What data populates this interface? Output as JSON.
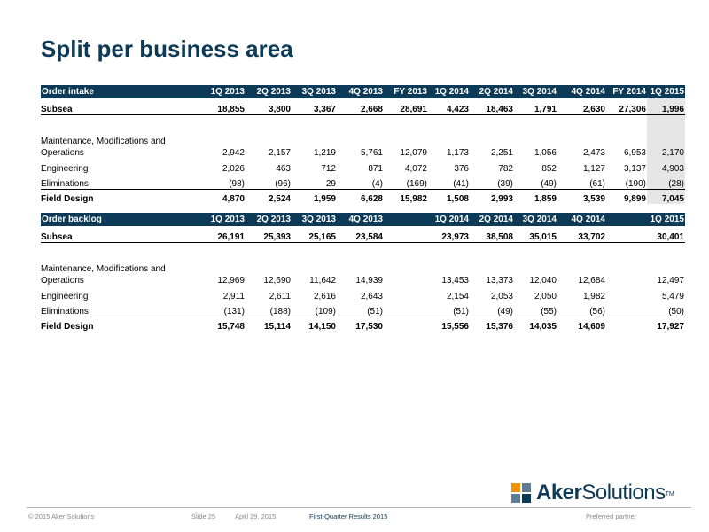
{
  "title": "Split per business area",
  "intake": {
    "header": [
      "Order intake",
      "1Q 2013",
      "2Q 2013",
      "3Q 2013",
      "4Q 2013",
      "FY 2013",
      "1Q 2014",
      "2Q 2014",
      "3Q 2014",
      "4Q 2014",
      "FY 2014",
      "1Q 2015"
    ],
    "rows": [
      {
        "label": "Subsea",
        "values": [
          "18,855",
          "3,800",
          "3,367",
          "2,668",
          "28,691",
          "4,423",
          "18,463",
          "1,791",
          "2,630",
          "27,306",
          "1,996"
        ]
      },
      {
        "label_line1": "Maintenance, Modifications and",
        "label_line2": "Operations",
        "values": [
          "2,942",
          "2,157",
          "1,219",
          "5,761",
          "12,079",
          "1,173",
          "2,251",
          "1,056",
          "2,473",
          "6,953",
          "2,170"
        ]
      },
      {
        "label": "Engineering",
        "values": [
          "2,026",
          "463",
          "712",
          "871",
          "4,072",
          "376",
          "782",
          "852",
          "1,127",
          "3,137",
          "4,903"
        ]
      },
      {
        "label": "Eliminations",
        "values": [
          "(98)",
          "(96)",
          "29",
          "(4)",
          "(169)",
          "(41)",
          "(39)",
          "(49)",
          "(61)",
          "(190)",
          "(28)"
        ]
      },
      {
        "label": "Field Design",
        "values": [
          "4,870",
          "2,524",
          "1,959",
          "6,628",
          "15,982",
          "1,508",
          "2,993",
          "1,859",
          "3,539",
          "9,899",
          "7,045"
        ]
      }
    ]
  },
  "backlog": {
    "header": [
      "Order backlog",
      "1Q 2013",
      "2Q 2013",
      "3Q 2013",
      "4Q 2013",
      "",
      "1Q 2014",
      "2Q 2014",
      "3Q 2014",
      "4Q 2014",
      "",
      "1Q 2015"
    ],
    "rows": [
      {
        "label": "Subsea",
        "values": [
          "26,191",
          "25,393",
          "25,165",
          "23,584",
          "",
          "23,973",
          "38,508",
          "35,015",
          "33,702",
          "",
          "30,401"
        ]
      },
      {
        "label_line1": "Maintenance, Modifications and",
        "label_line2": "Operations",
        "values": [
          "12,969",
          "12,690",
          "11,642",
          "14,939",
          "",
          "13,453",
          "13,373",
          "12,040",
          "12,684",
          "",
          "12,497"
        ]
      },
      {
        "label": "Engineering",
        "values": [
          "2,911",
          "2,611",
          "2,616",
          "2,643",
          "",
          "2,154",
          "2,053",
          "2,050",
          "1,982",
          "",
          "5,479"
        ]
      },
      {
        "label": "Eliminations",
        "values": [
          "(131)",
          "(188)",
          "(109)",
          "(51)",
          "",
          "(51)",
          "(49)",
          "(55)",
          "(56)",
          "",
          "(50)"
        ]
      },
      {
        "label": "Field Design",
        "values": [
          "15,748",
          "15,114",
          "14,150",
          "17,530",
          "",
          "15,556",
          "15,376",
          "14,035",
          "14,609",
          "",
          "17,927"
        ]
      }
    ]
  },
  "logo": {
    "part1": "Aker",
    "part2": "Solutions",
    "tm": "TM"
  },
  "footer": {
    "copyright": "© 2015 Aker Solutions",
    "slide": "Slide 25",
    "date": "April 29, 2015",
    "report": "First-Quarter Results 2015",
    "tagline": "Preferred partner"
  },
  "colors": {
    "brand_navy": "#0d3a57",
    "accent_orange": "#f39200",
    "highlight_grey": "#e6e6e6"
  }
}
